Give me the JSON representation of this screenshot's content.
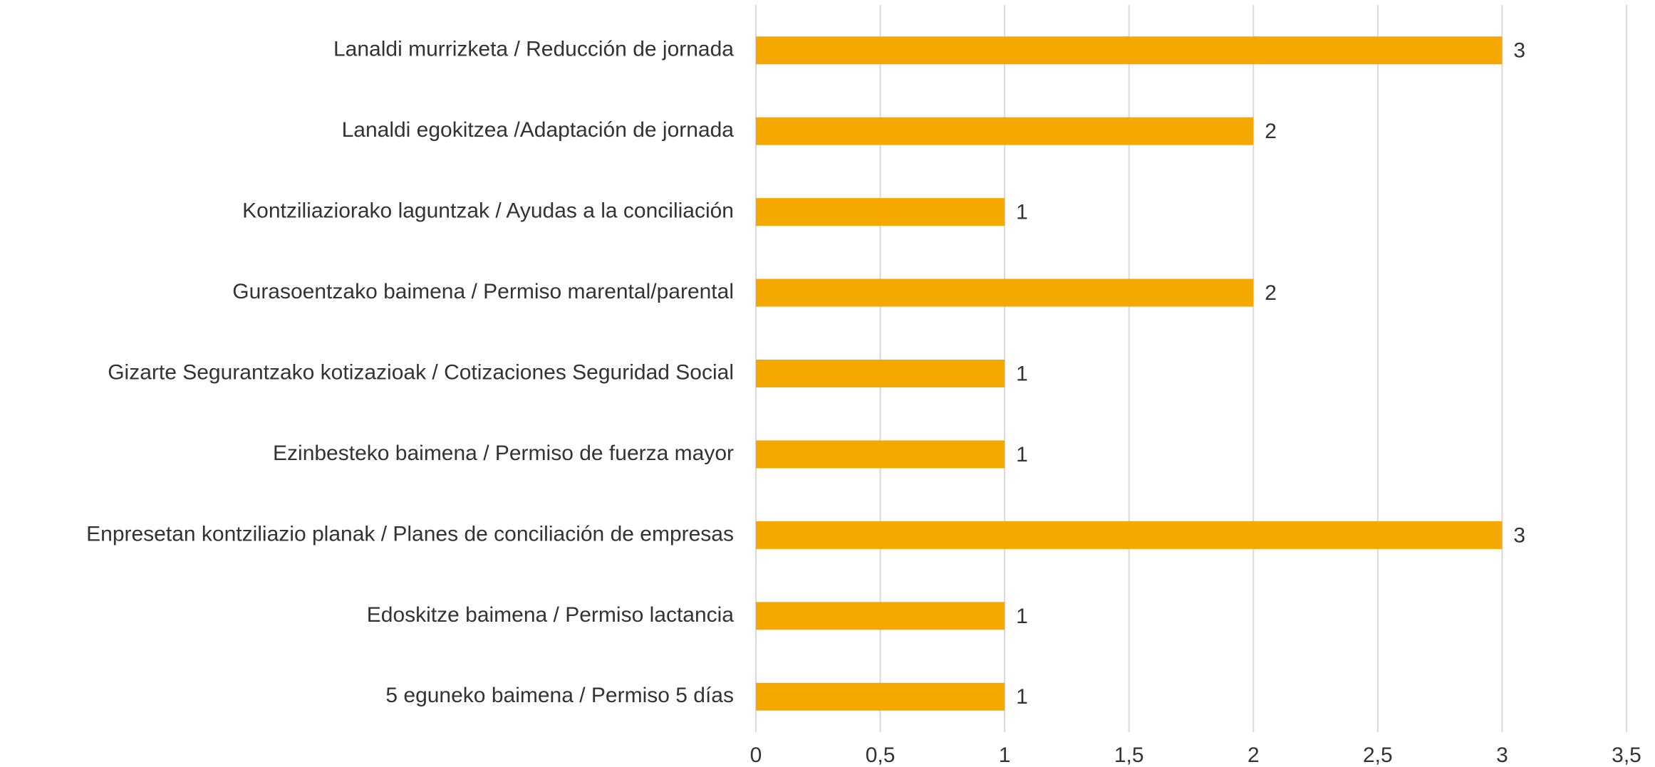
{
  "chart_data": {
    "type": "hbar",
    "categories": [
      "Lanaldi murrizketa / Reducción de jornada",
      "Lanaldi egokitzea /Adaptación de jornada",
      "Kontziliaziorako laguntzak / Ayudas a la conciliación",
      "Gurasoentzako baimena / Permiso marental/parental",
      "Gizarte Segurantzako kotizazioak / Cotizaciones Seguridad Social",
      "Ezinbesteko baimena / Permiso de fuerza mayor",
      "Enpresetan kontziliazio planak / Planes de conciliación de empresas",
      "Edoskitze baimena / Permiso lactancia",
      "5 eguneko baimena / Permiso 5 días"
    ],
    "values": [
      3,
      2,
      1,
      2,
      1,
      1,
      3,
      1,
      1
    ],
    "color": "#f5a800",
    "xlim": [
      0,
      3.5
    ],
    "xticks": [
      0,
      {
        "value": 0.5,
        "label": "0,5"
      },
      1,
      {
        "value": 1.5,
        "label": "1,5"
      },
      2,
      {
        "value": 2.5,
        "label": "2,5"
      },
      3,
      {
        "value": 3.5,
        "label": "3,5"
      }
    ],
    "grid": true
  }
}
